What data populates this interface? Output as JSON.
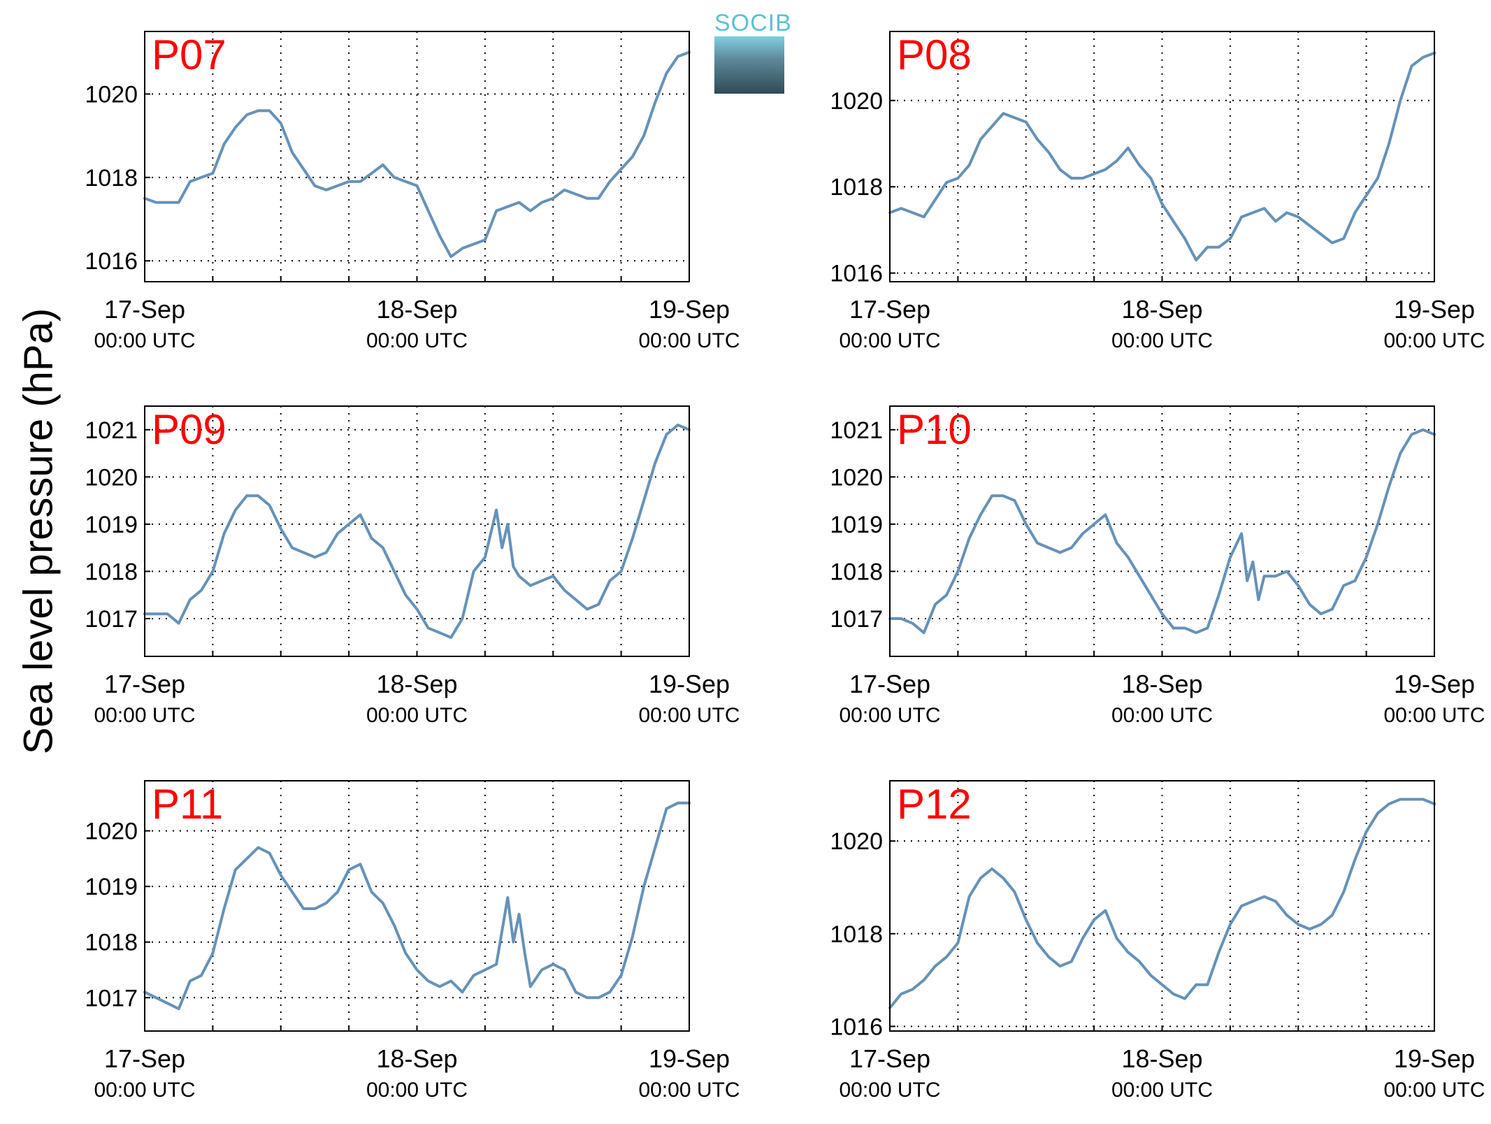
{
  "figure": {
    "ylabel": "Sea level pressure (hPa)",
    "logo_text": "SOCIB"
  },
  "chart_data": [
    {
      "type": "line",
      "panel_label": "P07",
      "x_ticks": [
        [
          "17-Sep",
          "00:00 UTC"
        ],
        [
          "18-Sep",
          "00:00 UTC"
        ],
        [
          "19-Sep",
          "00:00 UTC"
        ]
      ],
      "xlim": [
        0,
        48
      ],
      "ylim": [
        1015.5,
        1021.5
      ],
      "yticks": [
        1016,
        1018,
        1020
      ],
      "grid": true,
      "line_color": "#6592b8",
      "series": [
        {
          "x": [
            0,
            1,
            2,
            3,
            4,
            5,
            6,
            7,
            8,
            9,
            10,
            11,
            12,
            13,
            14,
            15,
            16,
            17,
            18,
            19,
            20,
            21,
            22,
            23,
            24,
            25,
            26,
            27,
            28,
            29,
            30,
            31,
            32,
            33,
            34,
            35,
            36,
            37,
            38,
            39,
            40,
            41,
            42,
            43,
            44,
            45,
            46,
            47,
            48
          ],
          "y": [
            1017.5,
            1017.4,
            1017.4,
            1017.4,
            1017.9,
            1018.0,
            1018.1,
            1018.8,
            1019.2,
            1019.5,
            1019.6,
            1019.6,
            1019.3,
            1018.6,
            1018.2,
            1017.8,
            1017.7,
            1017.8,
            1017.9,
            1017.9,
            1018.1,
            1018.3,
            1018.0,
            1017.9,
            1017.8,
            1017.2,
            1016.6,
            1016.1,
            1016.3,
            1016.4,
            1016.5,
            1017.2,
            1017.3,
            1017.4,
            1017.2,
            1017.4,
            1017.5,
            1017.7,
            1017.6,
            1017.5,
            1017.5,
            1017.9,
            1018.2,
            1018.5,
            1019.0,
            1019.8,
            1020.5,
            1020.9,
            1021.0
          ]
        }
      ]
    },
    {
      "type": "line",
      "panel_label": "P08",
      "x_ticks": [
        [
          "17-Sep",
          "00:00 UTC"
        ],
        [
          "18-Sep",
          "00:00 UTC"
        ],
        [
          "19-Sep",
          "00:00 UTC"
        ]
      ],
      "xlim": [
        0,
        48
      ],
      "ylim": [
        1015.8,
        1021.6
      ],
      "yticks": [
        1016,
        1018,
        1020
      ],
      "grid": true,
      "line_color": "#6592b8",
      "series": [
        {
          "x": [
            0,
            1,
            2,
            3,
            4,
            5,
            6,
            7,
            8,
            9,
            10,
            11,
            12,
            13,
            14,
            15,
            16,
            17,
            18,
            19,
            20,
            21,
            22,
            23,
            24,
            25,
            26,
            27,
            28,
            29,
            30,
            31,
            32,
            33,
            34,
            35,
            36,
            37,
            38,
            39,
            40,
            41,
            42,
            43,
            44,
            45,
            46,
            47,
            48
          ],
          "y": [
            1017.4,
            1017.5,
            1017.4,
            1017.3,
            1017.7,
            1018.1,
            1018.2,
            1018.5,
            1019.1,
            1019.4,
            1019.7,
            1019.6,
            1019.5,
            1019.1,
            1018.8,
            1018.4,
            1018.2,
            1018.2,
            1018.3,
            1018.4,
            1018.6,
            1018.9,
            1018.5,
            1018.2,
            1017.6,
            1017.2,
            1016.8,
            1016.3,
            1016.6,
            1016.6,
            1016.8,
            1017.3,
            1017.4,
            1017.5,
            1017.2,
            1017.4,
            1017.3,
            1017.1,
            1016.9,
            1016.7,
            1016.8,
            1017.4,
            1017.8,
            1018.2,
            1019.0,
            1020.0,
            1020.8,
            1021.0,
            1021.1
          ]
        }
      ]
    },
    {
      "type": "line",
      "panel_label": "P09",
      "x_ticks": [
        [
          "17-Sep",
          "00:00 UTC"
        ],
        [
          "18-Sep",
          "00:00 UTC"
        ],
        [
          "19-Sep",
          "00:00 UTC"
        ]
      ],
      "xlim": [
        0,
        48
      ],
      "ylim": [
        1016.2,
        1021.5
      ],
      "yticks": [
        1017,
        1018,
        1019,
        1020,
        1021
      ],
      "grid": true,
      "line_color": "#6592b8",
      "series": [
        {
          "x": [
            0,
            1,
            2,
            3,
            4,
            5,
            6,
            7,
            8,
            9,
            10,
            11,
            12,
            13,
            14,
            15,
            16,
            17,
            18,
            19,
            20,
            21,
            22,
            23,
            24,
            25,
            26,
            27,
            28,
            29,
            30,
            31,
            31.5,
            32,
            32.5,
            33,
            34,
            35,
            36,
            37,
            38,
            39,
            40,
            41,
            42,
            43,
            44,
            45,
            46,
            47,
            48
          ],
          "y": [
            1017.1,
            1017.1,
            1017.1,
            1016.9,
            1017.4,
            1017.6,
            1018.0,
            1018.8,
            1019.3,
            1019.6,
            1019.6,
            1019.4,
            1018.9,
            1018.5,
            1018.4,
            1018.3,
            1018.4,
            1018.8,
            1019.0,
            1019.2,
            1018.7,
            1018.5,
            1018.0,
            1017.5,
            1017.2,
            1016.8,
            1016.7,
            1016.6,
            1017.0,
            1018.0,
            1018.3,
            1019.3,
            1018.5,
            1019.0,
            1018.1,
            1017.9,
            1017.7,
            1017.8,
            1017.9,
            1017.6,
            1017.4,
            1017.2,
            1017.3,
            1017.8,
            1018.0,
            1018.7,
            1019.5,
            1020.3,
            1020.9,
            1021.1,
            1021.0
          ]
        }
      ]
    },
    {
      "type": "line",
      "panel_label": "P10",
      "x_ticks": [
        [
          "17-Sep",
          "00:00 UTC"
        ],
        [
          "18-Sep",
          "00:00 UTC"
        ],
        [
          "19-Sep",
          "00:00 UTC"
        ]
      ],
      "xlim": [
        0,
        48
      ],
      "ylim": [
        1016.2,
        1021.5
      ],
      "yticks": [
        1017,
        1018,
        1019,
        1020,
        1021
      ],
      "grid": true,
      "line_color": "#6592b8",
      "series": [
        {
          "x": [
            0,
            1,
            2,
            3,
            4,
            5,
            6,
            7,
            8,
            9,
            10,
            11,
            12,
            13,
            14,
            15,
            16,
            17,
            18,
            19,
            20,
            21,
            22,
            23,
            24,
            25,
            26,
            27,
            28,
            29,
            30,
            31,
            31.5,
            32,
            32.5,
            33,
            34,
            35,
            36,
            37,
            38,
            39,
            40,
            41,
            42,
            43,
            44,
            45,
            46,
            47,
            48
          ],
          "y": [
            1017.0,
            1017.0,
            1016.9,
            1016.7,
            1017.3,
            1017.5,
            1018.0,
            1018.7,
            1019.2,
            1019.6,
            1019.6,
            1019.5,
            1019.0,
            1018.6,
            1018.5,
            1018.4,
            1018.5,
            1018.8,
            1019.0,
            1019.2,
            1018.6,
            1018.3,
            1017.9,
            1017.5,
            1017.1,
            1016.8,
            1016.8,
            1016.7,
            1016.8,
            1017.5,
            1018.3,
            1018.8,
            1017.8,
            1018.2,
            1017.4,
            1017.9,
            1017.9,
            1018.0,
            1017.7,
            1017.3,
            1017.1,
            1017.2,
            1017.7,
            1017.8,
            1018.3,
            1019.0,
            1019.8,
            1020.5,
            1020.9,
            1021.0,
            1020.9
          ]
        }
      ]
    },
    {
      "type": "line",
      "panel_label": "P11",
      "x_ticks": [
        [
          "17-Sep",
          "00:00 UTC"
        ],
        [
          "18-Sep",
          "00:00 UTC"
        ],
        [
          "19-Sep",
          "00:00 UTC"
        ]
      ],
      "xlim": [
        0,
        48
      ],
      "ylim": [
        1016.4,
        1020.9
      ],
      "yticks": [
        1017,
        1018,
        1019,
        1020
      ],
      "grid": true,
      "line_color": "#6592b8",
      "series": [
        {
          "x": [
            0,
            1,
            2,
            3,
            4,
            5,
            6,
            7,
            8,
            9,
            10,
            11,
            12,
            13,
            14,
            15,
            16,
            17,
            18,
            19,
            20,
            21,
            22,
            23,
            24,
            25,
            26,
            27,
            28,
            29,
            30,
            31,
            32,
            32.5,
            33,
            33.5,
            34,
            35,
            36,
            37,
            38,
            39,
            40,
            41,
            42,
            43,
            44,
            45,
            46,
            47,
            48
          ],
          "y": [
            1017.1,
            1017.0,
            1016.9,
            1016.8,
            1017.3,
            1017.4,
            1017.8,
            1018.6,
            1019.3,
            1019.5,
            1019.7,
            1019.6,
            1019.2,
            1018.9,
            1018.6,
            1018.6,
            1018.7,
            1018.9,
            1019.3,
            1019.4,
            1018.9,
            1018.7,
            1018.3,
            1017.8,
            1017.5,
            1017.3,
            1017.2,
            1017.3,
            1017.1,
            1017.4,
            1017.5,
            1017.6,
            1018.8,
            1018.0,
            1018.5,
            1017.8,
            1017.2,
            1017.5,
            1017.6,
            1017.5,
            1017.1,
            1017.0,
            1017.0,
            1017.1,
            1017.4,
            1018.1,
            1019.0,
            1019.7,
            1020.4,
            1020.5,
            1020.5
          ]
        }
      ]
    },
    {
      "type": "line",
      "panel_label": "P12",
      "x_ticks": [
        [
          "17-Sep",
          "00:00 UTC"
        ],
        [
          "18-Sep",
          "00:00 UTC"
        ],
        [
          "19-Sep",
          "00:00 UTC"
        ]
      ],
      "xlim": [
        0,
        48
      ],
      "ylim": [
        1015.9,
        1021.3
      ],
      "yticks": [
        1016,
        1018,
        1020
      ],
      "grid": true,
      "line_color": "#6592b8",
      "series": [
        {
          "x": [
            0,
            1,
            2,
            3,
            4,
            5,
            6,
            7,
            8,
            9,
            10,
            11,
            12,
            13,
            14,
            15,
            16,
            17,
            18,
            19,
            20,
            21,
            22,
            23,
            24,
            25,
            26,
            27,
            28,
            29,
            30,
            31,
            32,
            33,
            34,
            35,
            36,
            37,
            38,
            39,
            40,
            41,
            42,
            43,
            44,
            45,
            46,
            47,
            48
          ],
          "y": [
            1016.4,
            1016.7,
            1016.8,
            1017.0,
            1017.3,
            1017.5,
            1017.8,
            1018.8,
            1019.2,
            1019.4,
            1019.2,
            1018.9,
            1018.3,
            1017.8,
            1017.5,
            1017.3,
            1017.4,
            1017.9,
            1018.3,
            1018.5,
            1017.9,
            1017.6,
            1017.4,
            1017.1,
            1016.9,
            1016.7,
            1016.6,
            1016.9,
            1016.9,
            1017.6,
            1018.2,
            1018.6,
            1018.7,
            1018.8,
            1018.7,
            1018.4,
            1018.2,
            1018.1,
            1018.2,
            1018.4,
            1018.9,
            1019.6,
            1020.2,
            1020.6,
            1020.8,
            1020.9,
            1020.9,
            1020.9,
            1020.8
          ]
        }
      ]
    }
  ]
}
